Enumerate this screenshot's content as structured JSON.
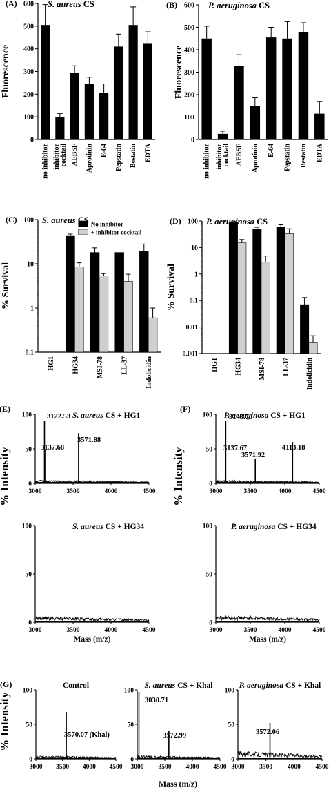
{
  "figure": {
    "colors": {
      "ink": "#000000",
      "bar_dark": "#000000",
      "bar_light": "#cfcfcf",
      "background": "#ffffff"
    }
  },
  "chart_data": [
    {
      "id": "A",
      "panel_label": "(A)",
      "type": "bar",
      "title_italic": "S. aureus",
      "title_rest": " CS",
      "ylabel": "Fluorescence",
      "ylim": [
        0,
        600
      ],
      "yticks": [
        "0",
        "100",
        "200",
        "300",
        "400",
        "500",
        "600"
      ],
      "categories": [
        "no inhibitor",
        "inhibitor cocktail",
        "AEBSF",
        "Aprotinin",
        "E-64",
        "Pepstatin",
        "Bestatin",
        "EDTA"
      ],
      "xtick_labels": [
        "no inhibitor",
        "inhibitor\ncocktail",
        "AEBSF",
        "Aprotinin",
        "E-64",
        "Pepstatin",
        "Bestatin",
        "EDTA"
      ],
      "values": [
        505,
        100,
        295,
        245,
        205,
        410,
        505,
        425
      ],
      "errors": [
        90,
        15,
        30,
        30,
        40,
        55,
        80,
        50
      ]
    },
    {
      "id": "B",
      "panel_label": "(B)",
      "type": "bar",
      "title_italic": "P. aeruginosa",
      "title_rest": " CS",
      "ylabel": "Fluorescence",
      "ylim": [
        0,
        600
      ],
      "yticks": [
        "0",
        "100",
        "200",
        "300",
        "400",
        "500",
        "600"
      ],
      "categories": [
        "no inhibitor",
        "inhibitor cocktail",
        "AEBSF",
        "Aprotinin",
        "E-64",
        "Pepstatin",
        "Bestatin",
        "EDTA"
      ],
      "xtick_labels": [
        "no inhibitor",
        "inhibitor\ncocktail",
        "AEBSF",
        "Aprotinin",
        "E-64",
        "Pepstatin",
        "Bestatin",
        "EDTA"
      ],
      "values": [
        450,
        25,
        328,
        148,
        455,
        450,
        480,
        115
      ],
      "errors": [
        55,
        12,
        50,
        38,
        45,
        75,
        40,
        55
      ]
    },
    {
      "id": "C",
      "panel_label": "(C)",
      "type": "bar",
      "yscale": "log",
      "title_italic": "S. aureus",
      "title_rest": " CS",
      "ylabel": "% Survival",
      "ylim": [
        0.1,
        100
      ],
      "yticks": [
        "0.1",
        "1",
        "10",
        "100"
      ],
      "categories": [
        "HG1",
        "HG34",
        "MSI-78",
        "LL-37",
        "Indolicidin"
      ],
      "legend_position": "top-right",
      "series": [
        {
          "name": "No inhibitor",
          "values": [
            null,
            42,
            18,
            18,
            19
          ],
          "errors": [
            null,
            5,
            5,
            0,
            9
          ]
        },
        {
          "name": "+ inhibitor cocktail",
          "values": [
            null,
            8.5,
            5.3,
            4.0,
            0.6
          ],
          "errors": [
            null,
            2,
            0.7,
            1.8,
            0.4
          ]
        }
      ]
    },
    {
      "id": "D",
      "panel_label": "(D)",
      "type": "bar",
      "yscale": "log",
      "title_italic": "P. aeruginosa",
      "title_rest": " CS",
      "ylabel": "% Survival",
      "ylim": [
        0.001,
        100
      ],
      "yticks": [
        "0.001",
        "0.01",
        "0.1",
        "1",
        "10",
        "100"
      ],
      "categories": [
        "HG1",
        "HG34",
        "MSI-78",
        "LL-37",
        "Indolicidin"
      ],
      "series": [
        {
          "name": "No inhibitor",
          "values": [
            null,
            90,
            50,
            60,
            0.07
          ],
          "errors": [
            null,
            5,
            8,
            12,
            0.06
          ]
        },
        {
          "name": "+ inhibitor cocktail",
          "values": [
            null,
            15,
            2.8,
            33,
            0.0027
          ],
          "errors": [
            null,
            5,
            2,
            18,
            0.002
          ]
        }
      ]
    },
    {
      "id": "E1",
      "panel_label": "(E)",
      "type": "line",
      "title_italic": "S. aureus",
      "title_rest": " CS + HG1",
      "xlim": [
        3000,
        4500
      ],
      "ylim": [
        0,
        100
      ],
      "xticks": [
        "3000",
        "3500",
        "4000",
        "4500"
      ],
      "yticks": [
        "0",
        "50",
        "100"
      ],
      "peaks": [
        {
          "x": 3122.53,
          "y": 90
        },
        {
          "x": 3137.68,
          "y": 48
        },
        {
          "x": 3571.88,
          "y": 73
        }
      ],
      "peak_labels": [
        "3122.53",
        "3137.68",
        "3571.88"
      ],
      "noise": 3
    },
    {
      "id": "F1",
      "panel_label": "(F)",
      "type": "line",
      "title_italic": "P. aeruginosa",
      "title_rest": " CS + HG1",
      "xlim": [
        3000,
        4500
      ],
      "ylim": [
        0,
        100
      ],
      "xticks": [
        "3000",
        "3500",
        "4000",
        "4500"
      ],
      "yticks": [
        "0",
        "50",
        "100"
      ],
      "peaks": [
        {
          "x": 3143.7,
          "y": 90
        },
        {
          "x": 3137.67,
          "y": 58
        },
        {
          "x": 3571.92,
          "y": 36
        },
        {
          "x": 4113.18,
          "y": 60
        }
      ],
      "peak_labels": [
        "3143.70",
        "3137.67",
        "3571.92",
        "4113.18"
      ],
      "noise": 3
    },
    {
      "id": "E2",
      "type": "line",
      "title_italic": "S. aureus",
      "title_rest": " CS + HG34",
      "xlabel": "Mass (m/z)",
      "xlim": [
        3000,
        4500
      ],
      "ylim": [
        0,
        100
      ],
      "xticks": [
        "3000",
        "3500",
        "4000",
        "4500"
      ],
      "yticks": [
        "0",
        "50",
        "100"
      ],
      "peaks": [],
      "peak_labels": [],
      "noise": 4
    },
    {
      "id": "F2",
      "type": "line",
      "title_italic": "P. aeruginosa",
      "title_rest": " CS + HG34",
      "xlabel": "Mass (m/z)",
      "xlim": [
        3000,
        4500
      ],
      "ylim": [
        0,
        100
      ],
      "xticks": [
        "3000",
        "3500",
        "4000",
        "4500"
      ],
      "yticks": [
        "0",
        "50",
        "100"
      ],
      "peaks": [],
      "peak_labels": [],
      "noise": 5
    },
    {
      "id": "G1",
      "panel_label": "(G)",
      "type": "line",
      "title_plain": "Control",
      "xlim": [
        3000,
        4500
      ],
      "ylim": [
        0,
        100
      ],
      "xticks": [
        "3000",
        "3500",
        "4000",
        "4500"
      ],
      "yticks": [
        "0",
        "50",
        "100"
      ],
      "peaks": [
        {
          "x": 3570.07,
          "y": 68
        }
      ],
      "peak_labels": [
        "3570.07 (Khal)"
      ],
      "noise": 3
    },
    {
      "id": "G2",
      "type": "line",
      "title_italic": "S. aureus",
      "title_rest": " CS + Khal",
      "xlim": [
        3000,
        4500
      ],
      "ylim": [
        0,
        100
      ],
      "xticks": [
        "3000",
        "3500",
        "4000",
        "4500"
      ],
      "yticks": [
        "0",
        "50",
        "100"
      ],
      "peaks": [
        {
          "x": 3030.71,
          "y": 97
        },
        {
          "x": 3572.99,
          "y": 40
        }
      ],
      "peak_labels": [
        "3030.71",
        "3572.99"
      ],
      "noise": 3
    },
    {
      "id": "G3",
      "type": "line",
      "title_italic": "P. aeruginosa",
      "title_rest": " CS + Khal",
      "xlim": [
        3000,
        4500
      ],
      "ylim": [
        0,
        100
      ],
      "xticks": [
        "3000",
        "3500",
        "4000",
        "4500"
      ],
      "yticks": [
        "0",
        "50",
        "100"
      ],
      "peaks": [
        {
          "x": 3572.06,
          "y": 52
        }
      ],
      "peak_labels": [
        "3572.06"
      ],
      "noise": 8
    }
  ],
  "shared_labels": {
    "intensity_ylabel": "% Intensity",
    "g_xlabel": "Mass (m/z)"
  }
}
